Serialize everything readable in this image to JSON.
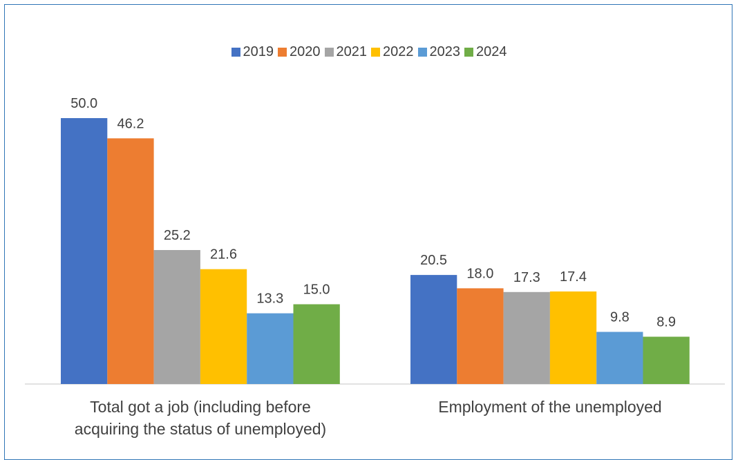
{
  "chart_data": {
    "type": "bar",
    "categories": [
      "Total got a job (including before acquiring the status of unemployed)",
      "Employment of the unemployed"
    ],
    "series": [
      {
        "name": "2019",
        "color": "#4472c4",
        "values": [
          50.0,
          20.5
        ]
      },
      {
        "name": "2020",
        "color": "#ed7d31",
        "values": [
          46.2,
          18.0
        ]
      },
      {
        "name": "2021",
        "color": "#a5a5a5",
        "values": [
          25.2,
          17.3
        ]
      },
      {
        "name": "2022",
        "color": "#ffc000",
        "values": [
          21.6,
          17.4
        ]
      },
      {
        "name": "2023",
        "color": "#5b9bd5",
        "values": [
          13.3,
          9.8
        ]
      },
      {
        "name": "2024",
        "color": "#70ad47",
        "values": [
          15.0,
          8.9
        ]
      }
    ],
    "data_labels": [
      [
        "50.0",
        "20.5"
      ],
      [
        "46.2",
        "18.0"
      ],
      [
        "25.2",
        "17.3"
      ],
      [
        "21.6",
        "17.4"
      ],
      [
        "13.3",
        "9.8"
      ],
      [
        "15.0",
        "8.9"
      ]
    ],
    "title": "",
    "xlabel": "",
    "ylabel": "",
    "ylim": [
      0,
      50
    ],
    "grid": false,
    "legend_position": "top-center"
  }
}
